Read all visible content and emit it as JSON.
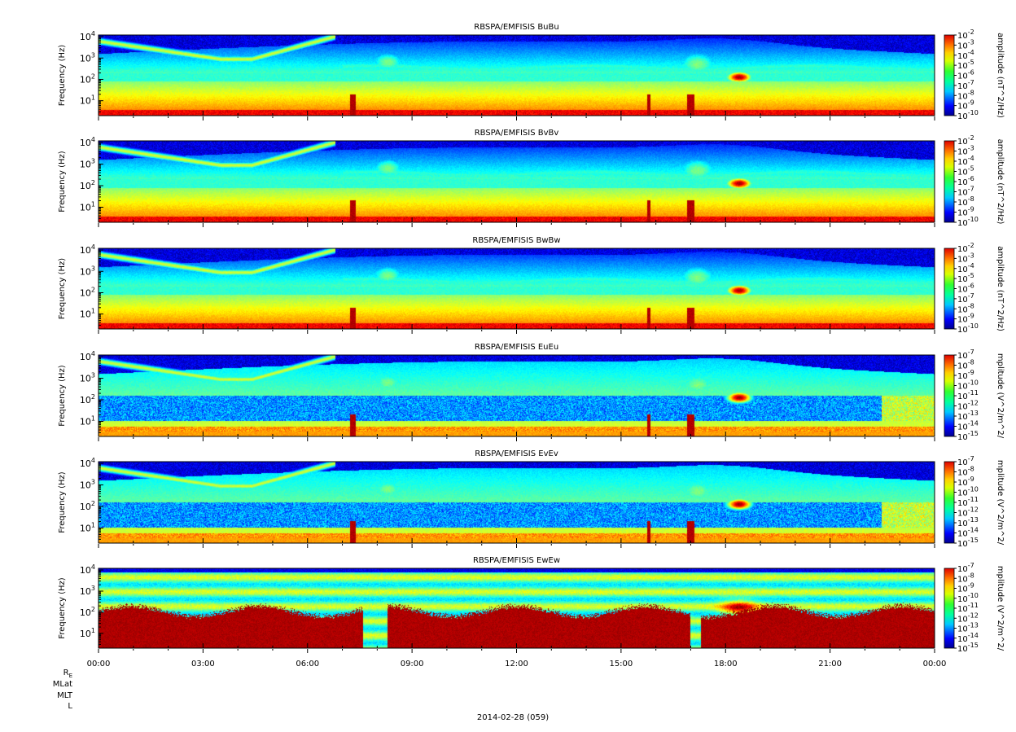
{
  "figure": {
    "date_label": "2014-02-28 (059)",
    "ephemeris_labels": [
      "R",
      "MLat",
      "MLT",
      "L"
    ],
    "ephemeris_subscript": "E"
  },
  "chart_data": [
    {
      "type": "heatmap",
      "title": "RBSPA/EMFISIS  BuBu",
      "ylabel": "Frequency (Hz)",
      "colorbar_label": "amplitude (nT^2/Hz)",
      "y_scale": "log",
      "y_ticks": [
        10,
        100,
        1000,
        10000
      ],
      "y_tick_exponents": [
        "1",
        "2",
        "3",
        "4"
      ],
      "ylim": [
        2,
        12000
      ],
      "colorbar_range": [
        -10,
        -2
      ],
      "colorbar_tick_exponents": [
        "-10",
        "-9",
        "-8",
        "-7",
        "-6",
        "-5",
        "-4",
        "-3",
        "-2"
      ],
      "style": "magnetic"
    },
    {
      "type": "heatmap",
      "title": "RBSPA/EMFISIS  BvBv",
      "ylabel": "Frequency (Hz)",
      "colorbar_label": "amplitude (nT^2/Hz)",
      "y_scale": "log",
      "y_ticks": [
        10,
        100,
        1000,
        10000
      ],
      "y_tick_exponents": [
        "1",
        "2",
        "3",
        "4"
      ],
      "ylim": [
        2,
        12000
      ],
      "colorbar_range": [
        -10,
        -2
      ],
      "colorbar_tick_exponents": [
        "-10",
        "-9",
        "-8",
        "-7",
        "-6",
        "-5",
        "-4",
        "-3",
        "-2"
      ],
      "style": "magnetic"
    },
    {
      "type": "heatmap",
      "title": "RBSPA/EMFISIS  BwBw",
      "ylabel": "Frequency (Hz)",
      "colorbar_label": "amplitude (nT^2/Hz)",
      "y_scale": "log",
      "y_ticks": [
        10,
        100,
        1000,
        10000
      ],
      "y_tick_exponents": [
        "1",
        "2",
        "3",
        "4"
      ],
      "ylim": [
        2,
        12000
      ],
      "colorbar_range": [
        -10,
        -2
      ],
      "colorbar_tick_exponents": [
        "-10",
        "-9",
        "-8",
        "-7",
        "-6",
        "-5",
        "-4",
        "-3",
        "-2"
      ],
      "style": "magnetic"
    },
    {
      "type": "heatmap",
      "title": "RBSPA/EMFISIS  EuEu",
      "ylabel": "Frequency (Hz)",
      "colorbar_label": "mplitude (V^2/m^2/",
      "y_scale": "log",
      "y_ticks": [
        10,
        100,
        1000,
        10000
      ],
      "y_tick_exponents": [
        "1",
        "2",
        "3",
        "4"
      ],
      "ylim": [
        2,
        12000
      ],
      "colorbar_range": [
        -15,
        -7
      ],
      "colorbar_tick_exponents": [
        "-15",
        "-14",
        "-13",
        "-12",
        "-11",
        "-10",
        "-9",
        "-8",
        "-7"
      ],
      "style": "electric"
    },
    {
      "type": "heatmap",
      "title": "RBSPA/EMFISIS  EvEv",
      "ylabel": "Frequency (Hz)",
      "colorbar_label": "mplitude (V^2/m^2/",
      "y_scale": "log",
      "y_ticks": [
        10,
        100,
        1000,
        10000
      ],
      "y_tick_exponents": [
        "1",
        "2",
        "3",
        "4"
      ],
      "ylim": [
        2,
        12000
      ],
      "colorbar_range": [
        -15,
        -7
      ],
      "colorbar_tick_exponents": [
        "-15",
        "-14",
        "-13",
        "-12",
        "-11",
        "-10",
        "-9",
        "-8",
        "-7"
      ],
      "style": "electric"
    },
    {
      "type": "heatmap",
      "title": "RBSPA/EMFISIS  EwEw",
      "ylabel": "Frequency (Hz)",
      "colorbar_label": "mplitude (V^2/m^2/",
      "y_scale": "log",
      "y_ticks": [
        10,
        100,
        1000,
        10000
      ],
      "y_tick_exponents": [
        "1",
        "2",
        "3",
        "4"
      ],
      "ylim": [
        2,
        12000
      ],
      "colorbar_range": [
        -15,
        -7
      ],
      "colorbar_tick_exponents": [
        "-15",
        "-14",
        "-13",
        "-12",
        "-11",
        "-10",
        "-9",
        "-8",
        "-7"
      ],
      "style": "spin"
    }
  ],
  "x_axis": {
    "tick_labels": [
      "00:00",
      "03:00",
      "06:00",
      "09:00",
      "12:00",
      "15:00",
      "18:00",
      "21:00",
      "00:00"
    ],
    "range_hours": [
      0,
      24
    ]
  }
}
